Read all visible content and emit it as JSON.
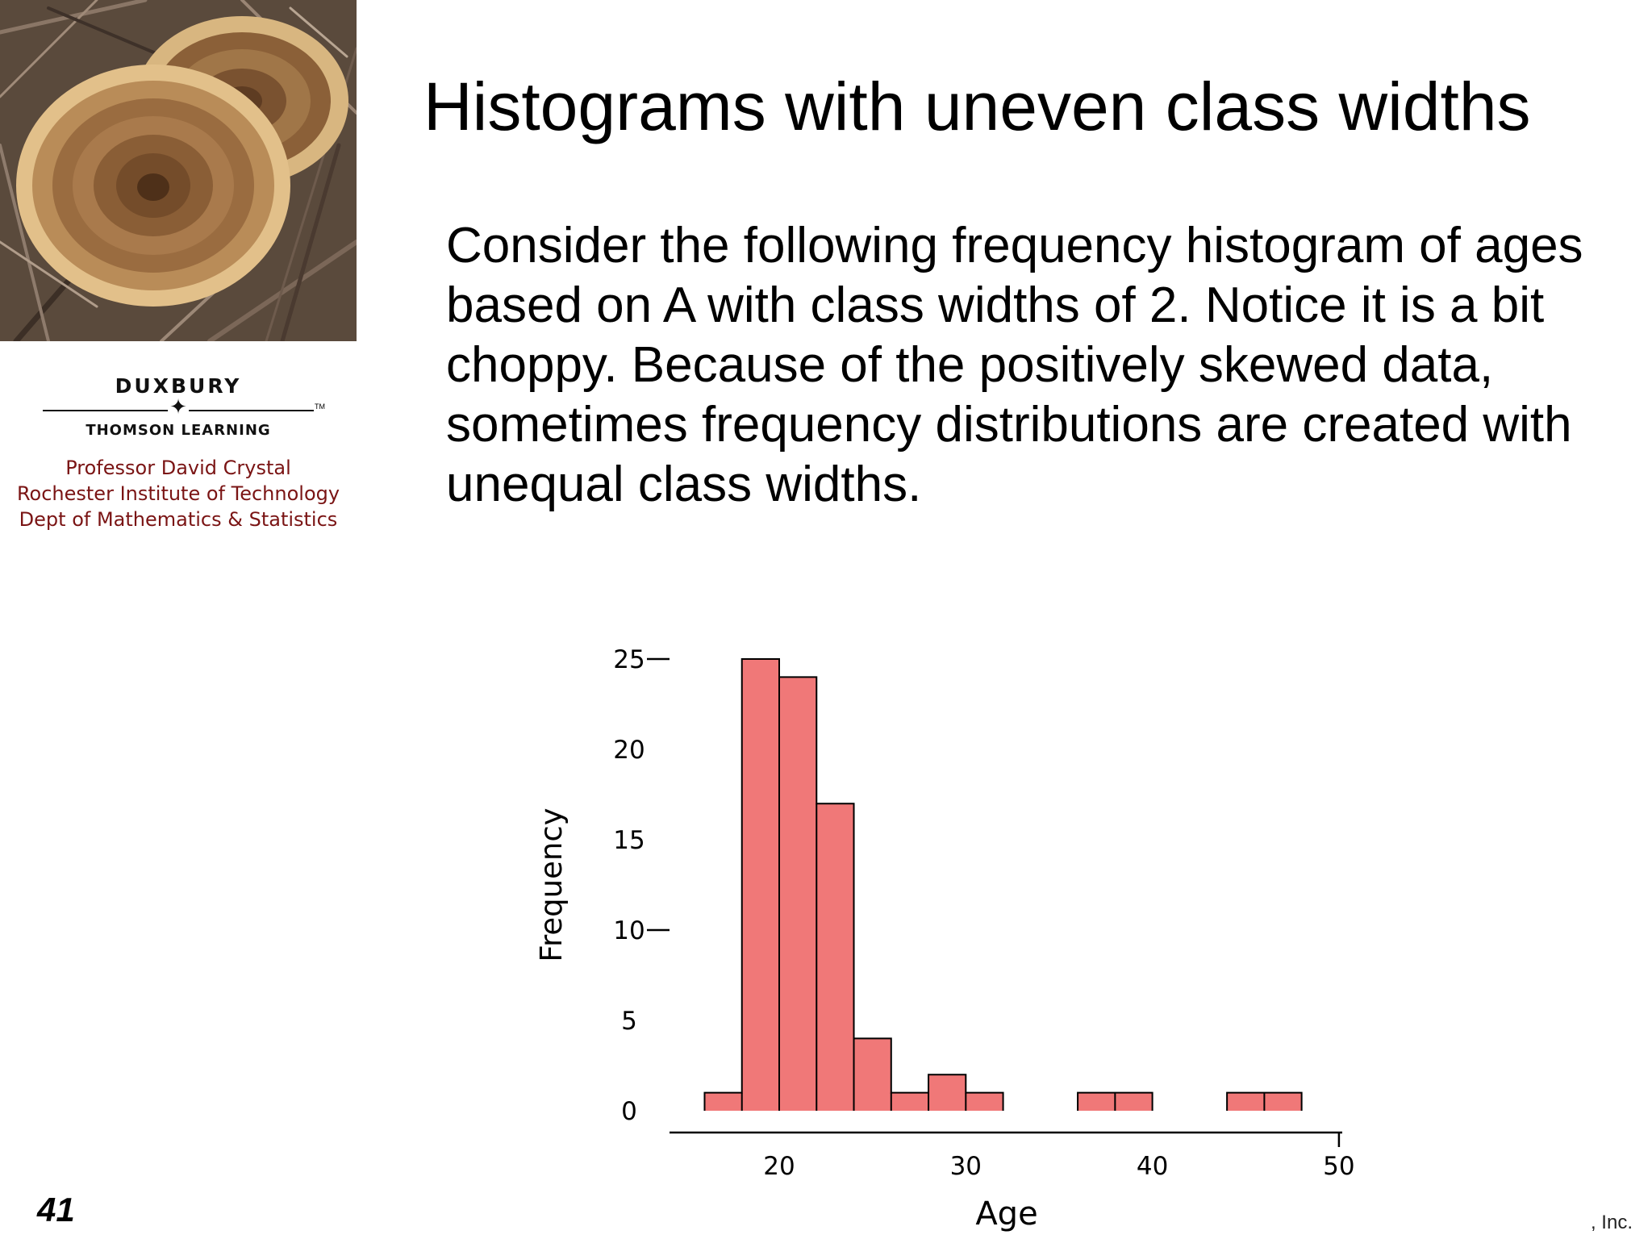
{
  "slide": {
    "title": "Histograms with uneven class widths",
    "body": "Consider the following frequency histogram of ages based on A with class widths of 2. Notice it is a bit choppy. Because of the positively skewed data, sometimes frequency distributions are created with unequal class widths.",
    "number": "41",
    "copyright_fragment": ", Inc."
  },
  "branding": {
    "publisher_top": "DUXBURY",
    "publisher_bottom": "THOMSON LEARNING",
    "professor_lines": [
      "Professor David Crystal",
      "Rochester Institute of Technology",
      "Dept of Mathematics & Statistics"
    ]
  },
  "chart_data": {
    "type": "bar",
    "xlabel": "Age",
    "ylabel": "Frequency",
    "bin_width": 2,
    "bins": [
      {
        "from": 16,
        "to": 18,
        "count": 1
      },
      {
        "from": 18,
        "to": 20,
        "count": 25
      },
      {
        "from": 20,
        "to": 22,
        "count": 24
      },
      {
        "from": 22,
        "to": 24,
        "count": 17
      },
      {
        "from": 24,
        "to": 26,
        "count": 4
      },
      {
        "from": 26,
        "to": 28,
        "count": 1
      },
      {
        "from": 28,
        "to": 30,
        "count": 2
      },
      {
        "from": 30,
        "to": 32,
        "count": 1
      },
      {
        "from": 32,
        "to": 34,
        "count": 0
      },
      {
        "from": 34,
        "to": 36,
        "count": 0
      },
      {
        "from": 36,
        "to": 38,
        "count": 1
      },
      {
        "from": 38,
        "to": 40,
        "count": 1
      },
      {
        "from": 40,
        "to": 42,
        "count": 0
      },
      {
        "from": 42,
        "to": 44,
        "count": 0
      },
      {
        "from": 44,
        "to": 46,
        "count": 1
      },
      {
        "from": 46,
        "to": 48,
        "count": 1
      }
    ],
    "xticks": [
      20,
      30,
      40,
      50
    ],
    "yticks": [
      0,
      5,
      10,
      15,
      20,
      25
    ],
    "xlim": [
      16,
      50
    ],
    "ylim": [
      0,
      25
    ],
    "bar_color": "#f07878",
    "edge_color": "#000000"
  }
}
